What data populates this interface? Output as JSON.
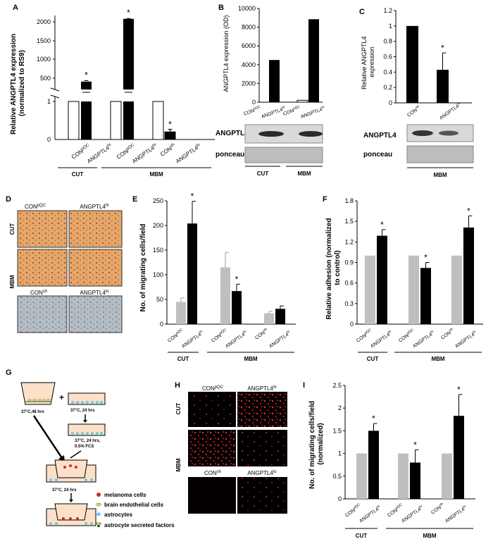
{
  "panel_letters": {
    "a": "A",
    "b": "B",
    "c": "C",
    "d": "D",
    "e": "E",
    "f": "F",
    "g": "G",
    "h": "H",
    "i": "I"
  },
  "sig": "*",
  "groups": {
    "cut": "CUT",
    "mbm": "MBM"
  },
  "cats": {
    "con_pqc": [
      "CON",
      "pQC"
    ],
    "angptl4_hi": [
      "ANGPTL4",
      "hi"
    ],
    "con_sh": [
      "CON",
      "sh"
    ],
    "angptl4_lo": [
      "ANGPTL4",
      "lo"
    ]
  },
  "blots": {
    "angptl4": "ANGPTL4",
    "ponceau": "ponceau"
  },
  "colors": {
    "control_bar_grey": "#bfbfbf",
    "treated_bar_black": "#000000",
    "control_bar_white": "#ffffff"
  },
  "chart_data": [
    {
      "id": "A",
      "type": "bar",
      "ylabel": "Relative ANGPTL4 expression (normalized to RS9)",
      "ylabel_lines": [
        "Relative ANGPTL4 expression",
        "(normalized to RS9)"
      ],
      "axis_break": true,
      "y_lower_ticks": [
        "0",
        "1"
      ],
      "y_upper_ticks": [
        "500",
        "1000",
        "1500",
        "2000"
      ],
      "values": [
        1,
        400,
        1,
        2080,
        1,
        0.2
      ],
      "errors": [
        0,
        25,
        0,
        10,
        0,
        0.07
      ],
      "significant": [
        false,
        true,
        false,
        true,
        false,
        true
      ],
      "group_spans": [
        [
          "CUT",
          0,
          1
        ],
        [
          "MBM",
          2,
          5
        ]
      ]
    },
    {
      "id": "B",
      "type": "bar",
      "ylabel": "ANGPTL4 expression (OD)",
      "ylim": [
        0,
        10000
      ],
      "yticks": [
        "0",
        "2000",
        "4000",
        "6000",
        "8000",
        "10000"
      ],
      "values": [
        0,
        4500,
        200,
        8850
      ],
      "group_spans": [
        [
          "CUT",
          0,
          1
        ],
        [
          "MBM",
          2,
          3
        ]
      ]
    },
    {
      "id": "C",
      "type": "bar",
      "ylabel": "Relative ANGPTL4 expression",
      "ylabel_lines": [
        "Relative ANGPTL4",
        "expression"
      ],
      "ylim": [
        0,
        1.2
      ],
      "yticks": [
        "0",
        "0.2",
        "0.4",
        "0.6",
        "0.8",
        "1",
        "1.2"
      ],
      "values": [
        1,
        0.43
      ],
      "errors": [
        0,
        0.22
      ],
      "significant": [
        false,
        true
      ],
      "group_spans": [
        [
          "MBM",
          0,
          1
        ]
      ]
    },
    {
      "id": "E",
      "type": "bar",
      "ylabel": "No. of migrating cells/field",
      "ylim": [
        0,
        250
      ],
      "yticks": [
        "0",
        "50",
        "100",
        "150",
        "200",
        "250"
      ],
      "values": [
        45,
        204,
        115,
        67,
        22,
        31
      ],
      "errors": [
        8,
        45,
        30,
        14,
        4,
        6
      ],
      "significant": [
        false,
        true,
        false,
        true,
        false,
        false
      ],
      "group_spans": [
        [
          "CUT",
          0,
          1
        ],
        [
          "MBM",
          2,
          5
        ]
      ]
    },
    {
      "id": "F",
      "type": "bar",
      "ylabel": "Relative adhesion (normalized to control)",
      "ylabel_lines": [
        "Relative adhesion (normalized",
        "to control)"
      ],
      "ylim": [
        0,
        1.8
      ],
      "yticks": [
        "0",
        "0.3",
        "0.6",
        "0.9",
        "1.2",
        "1.5",
        "1.8"
      ],
      "values": [
        1,
        1.29,
        1,
        0.82,
        1,
        1.41
      ],
      "errors": [
        0,
        0.09,
        0,
        0.08,
        0,
        0.17
      ],
      "significant": [
        false,
        true,
        false,
        true,
        false,
        true
      ],
      "group_spans": [
        [
          "CUT",
          0,
          1
        ],
        [
          "MBM",
          2,
          5
        ]
      ]
    },
    {
      "id": "I",
      "type": "bar",
      "ylabel": "No. of migrating cells/field (normalized)",
      "ylabel_lines": [
        "No. of migrating cells/field",
        "(normalized)"
      ],
      "ylim": [
        0,
        2.5
      ],
      "yticks": [
        "0",
        "0.5",
        "1",
        "1.5",
        "2",
        "2.5"
      ],
      "values": [
        1,
        1.5,
        1,
        0.8,
        1,
        1.83
      ],
      "errors": [
        0,
        0.16,
        0,
        0.28,
        0,
        0.47
      ],
      "significant": [
        false,
        true,
        false,
        true,
        false,
        true
      ],
      "group_spans": [
        [
          "CUT",
          0,
          1
        ],
        [
          "MBM",
          2,
          5
        ]
      ]
    }
  ],
  "panel_d": {
    "col1": [
      "CON",
      "pQC"
    ],
    "col2": [
      "ANGPTL4",
      "hi"
    ],
    "col3": [
      "CON",
      "sh"
    ],
    "col4": [
      "ANGPTL4",
      "lo"
    ],
    "row_cut": "CUT",
    "row_mbm": "MBM"
  },
  "panel_h": {
    "col1": [
      "CON",
      "pQC"
    ],
    "col2": [
      "ANGPTL4",
      "hi"
    ],
    "col3": [
      "CON",
      "sh"
    ],
    "col4": [
      "ANGPTL4",
      "lo"
    ],
    "row_cut": "CUT",
    "row_mbm": "MBM"
  },
  "panel_g": {
    "step1": "37°C,48 hrs",
    "step2": "37°C, 24 hrs",
    "step3": [
      "37°C, 24 hrs,",
      "0.5% FCS"
    ],
    "step4": "37°C, 24 hrs",
    "plus": "+",
    "legend": [
      "melanoma cells",
      "brain endothelial cells",
      "astrocytes",
      "astrocyte secreted factors"
    ]
  }
}
